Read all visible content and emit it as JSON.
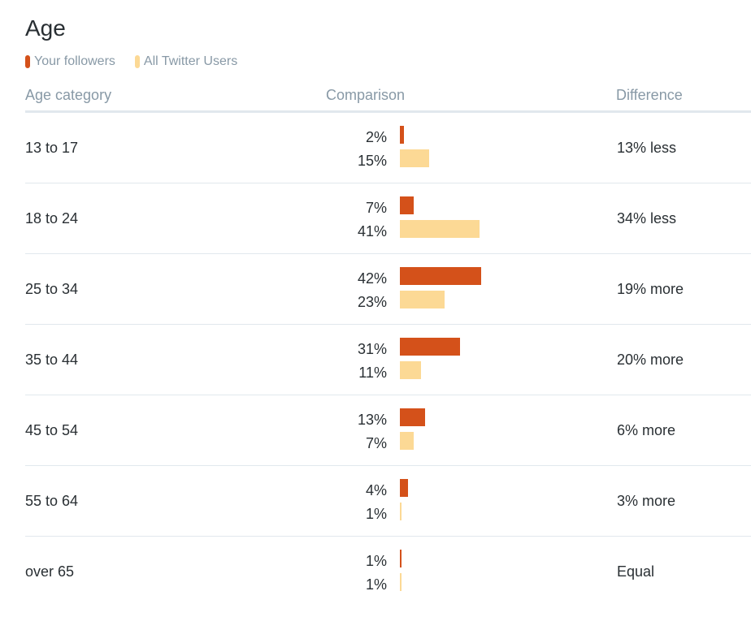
{
  "title": "Age",
  "legend": [
    {
      "label": "Your followers",
      "color": "#d4511a"
    },
    {
      "label": "All Twitter Users",
      "color": "#fcd995"
    }
  ],
  "headers": {
    "age": "Age category",
    "comparison": "Comparison",
    "difference": "Difference"
  },
  "chart_data": {
    "type": "bar",
    "title": "Age",
    "categories": [
      "13 to 17",
      "18 to 24",
      "25 to 34",
      "35 to 44",
      "45 to 54",
      "55 to 64",
      "over 65"
    ],
    "series": [
      {
        "name": "Your followers",
        "values": [
          2,
          7,
          42,
          31,
          13,
          4,
          1
        ],
        "color": "#d4511a"
      },
      {
        "name": "All Twitter Users",
        "values": [
          15,
          41,
          23,
          11,
          7,
          1,
          1
        ],
        "color": "#fcd995"
      }
    ],
    "value_labels": {
      "followers": [
        "2%",
        "7%",
        "42%",
        "31%",
        "13%",
        "4%",
        "1%"
      ],
      "all": [
        "15%",
        "41%",
        "23%",
        "11%",
        "7%",
        "1%",
        "1%"
      ]
    },
    "differences": [
      "13% less",
      "34% less",
      "19% more",
      "20% more",
      "6% more",
      "3% more",
      "Equal"
    ],
    "orientation": "horizontal",
    "legend_position": "top-left",
    "grid": false
  }
}
